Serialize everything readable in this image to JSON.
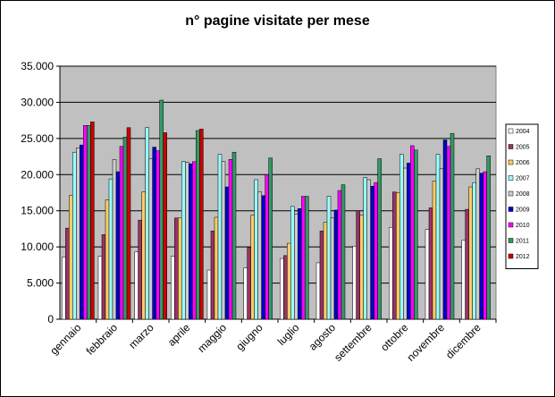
{
  "chart_data": {
    "type": "bar",
    "title": "n° pagine visitate per mese",
    "xlabel": "",
    "ylabel": "",
    "ylim": [
      0,
      35000
    ],
    "yticks": [
      "0",
      "5.000",
      "10.000",
      "15.000",
      "20.000",
      "25.000",
      "30.000",
      "35.000"
    ],
    "ytick_values": [
      0,
      5000,
      10000,
      15000,
      20000,
      25000,
      30000,
      35000
    ],
    "grid": true,
    "legend_position": "right",
    "plot_background": "#C0C0C0",
    "categories": [
      "gennaio",
      "febbraio",
      "marzo",
      "aprile",
      "maggio",
      "giugno",
      "luglio",
      "agosto",
      "settembre",
      "ottobre",
      "novembre",
      "dicembre"
    ],
    "series": [
      {
        "name": "2004",
        "color": "#FFFFFF",
        "values": [
          8600,
          8700,
          9300,
          8700,
          6800,
          7100,
          8400,
          7800,
          10100,
          12700,
          12400,
          10900
        ]
      },
      {
        "name": "2005",
        "color": "#993366",
        "values": [
          12600,
          11700,
          13700,
          14000,
          12200,
          9900,
          8800,
          12200,
          15000,
          17600,
          15400,
          15200
        ]
      },
      {
        "name": "2006",
        "color": "#FFCC66",
        "values": [
          17100,
          16500,
          17600,
          14000,
          14100,
          14400,
          10500,
          13400,
          14400,
          17500,
          19100,
          18300
        ]
      },
      {
        "name": "2007",
        "color": "#99FFFF",
        "values": [
          23100,
          19400,
          26500,
          21800,
          22800,
          19300,
          15600,
          17000,
          19600,
          22800,
          22800,
          18900
        ]
      },
      {
        "name": "2008",
        "color": "#CCCCCC",
        "values": [
          23700,
          22100,
          22200,
          21700,
          21800,
          17600,
          14500,
          14000,
          19300,
          20900,
          20800,
          20800
        ]
      },
      {
        "name": "2009",
        "color": "#0000CC",
        "values": [
          24100,
          20400,
          23800,
          21500,
          18300,
          17100,
          15300,
          15100,
          18400,
          21600,
          24800,
          20200
        ]
      },
      {
        "name": "2010",
        "color": "#FF00FF",
        "values": [
          26800,
          23900,
          23300,
          21800,
          22100,
          20000,
          17000,
          17800,
          18900,
          24000,
          23900,
          20400
        ]
      },
      {
        "name": "2011",
        "color": "#339966",
        "values": [
          26800,
          25200,
          30300,
          26100,
          23100,
          22300,
          17000,
          18600,
          22200,
          23400,
          25700,
          22600
        ]
      },
      {
        "name": "2012",
        "color": "#CC0000",
        "values": [
          27300,
          26500,
          25800,
          26300,
          null,
          null,
          null,
          null,
          null,
          null,
          null,
          null
        ]
      }
    ]
  }
}
